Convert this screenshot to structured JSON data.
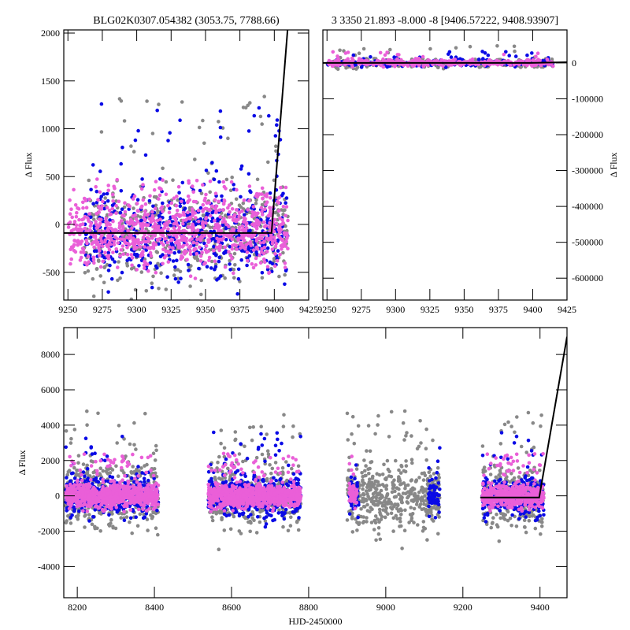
{
  "chart_data": [
    {
      "type": "scatter",
      "title": "BLG02K0307.054382 (3053.75, 7788.66)",
      "xlabel": "",
      "ylabel": "Δ Flux",
      "xlim": [
        9247,
        9425
      ],
      "ylim": [
        -790,
        2033
      ],
      "xticks": [
        "9250",
        "9275",
        "9300",
        "9325",
        "9350",
        "9375",
        "9400",
        "9425"
      ],
      "yticks": [
        "-500",
        "0",
        "500",
        "1000",
        "1500",
        "2000"
      ],
      "series": [
        {
          "name": "gray",
          "color": "#888888",
          "seasons": [
            [
              9262,
              9410
            ]
          ],
          "n": 500,
          "base": -90,
          "sigma": 250,
          "tail": 1800
        },
        {
          "name": "blue",
          "color": "#0a0ae6",
          "seasons": [
            [
              9262,
              9410
            ]
          ],
          "n": 550,
          "base": -90,
          "sigma": 230,
          "tail": 1700
        },
        {
          "name": "magenta",
          "color": "#ea5fd8",
          "seasons": [
            [
              9250,
              9410
            ]
          ],
          "n": 900,
          "base": -90,
          "sigma": 170,
          "tail": 700
        }
      ],
      "model": {
        "x": [
          9247,
          9398,
          9410
        ],
        "y": [
          -90,
          -90,
          2100
        ]
      }
    },
    {
      "type": "scatter",
      "title": "3 3350 21.893 -8.000 -8 [9406.57222, 9408.93907]",
      "xlabel": "",
      "ylabel": "Δ Flux",
      "xlim": [
        9247,
        9425
      ],
      "ylim": [
        -661000,
        92000
      ],
      "xticks": [
        "9250",
        "9275",
        "9300",
        "9325",
        "9350",
        "9375",
        "9400",
        "9425"
      ],
      "yticks": [
        "-600000",
        "-500000",
        "-400000",
        "-300000",
        "-200000",
        "-100000",
        "0"
      ],
      "series": [
        {
          "name": "gray",
          "color": "#888888",
          "seasons": [
            [
              9250,
              9415
            ]
          ],
          "n": 300,
          "base": 0,
          "sigma": 6000,
          "tail": 60000
        },
        {
          "name": "blue",
          "color": "#0a0ae6",
          "seasons": [
            [
              9250,
              9415
            ]
          ],
          "n": 200,
          "base": 0,
          "sigma": 5000,
          "tail": 40000
        },
        {
          "name": "magenta",
          "color": "#ea5fd8",
          "seasons": [
            [
              9250,
              9415
            ]
          ],
          "n": 400,
          "base": 0,
          "sigma": 4000,
          "tail": 40000
        }
      ],
      "model": {
        "x": [
          9247,
          9398,
          9425
        ],
        "y": [
          -90,
          -90,
          2100
        ]
      }
    },
    {
      "type": "scatter",
      "title": "",
      "xlabel": "HJD-2450000",
      "ylabel": "Δ Flux",
      "xlim": [
        8165,
        9470
      ],
      "ylim": [
        -5765,
        9520
      ],
      "xticks": [
        "8200",
        "8400",
        "8600",
        "8800",
        "9000",
        "9200",
        "9400"
      ],
      "yticks": [
        "-4000",
        "-2000",
        "0",
        "2000",
        "4000",
        "6000",
        "8000"
      ],
      "series": [
        {
          "name": "gray",
          "color": "#888888",
          "seasons": [
            [
              8170,
              8410
            ],
            [
              8540,
              8780
            ],
            [
              8900,
              9140
            ],
            [
              9250,
              9410
            ]
          ],
          "n": 1600,
          "base": 0,
          "sigma": 900,
          "tail": 6000
        },
        {
          "name": "blue",
          "color": "#0a0ae6",
          "seasons": [
            [
              8170,
              8410
            ],
            [
              8540,
              8780
            ],
            [
              8905,
              8930
            ],
            [
              9110,
              9140
            ],
            [
              9250,
              9410
            ]
          ],
          "n": 1400,
          "base": 0,
          "sigma": 500,
          "tail": 4500
        },
        {
          "name": "magenta",
          "color": "#ea5fd8",
          "seasons": [
            [
              8170,
              8410
            ],
            [
              8540,
              8780
            ],
            [
              8905,
              8925
            ],
            [
              9250,
              9410
            ]
          ],
          "n": 2200,
          "base": 0,
          "sigma": 300,
          "tail": 3000
        }
      ],
      "model": {
        "x": [
          9245,
          9398,
          9470
        ],
        "y": [
          -90,
          -90,
          9000
        ]
      }
    }
  ]
}
